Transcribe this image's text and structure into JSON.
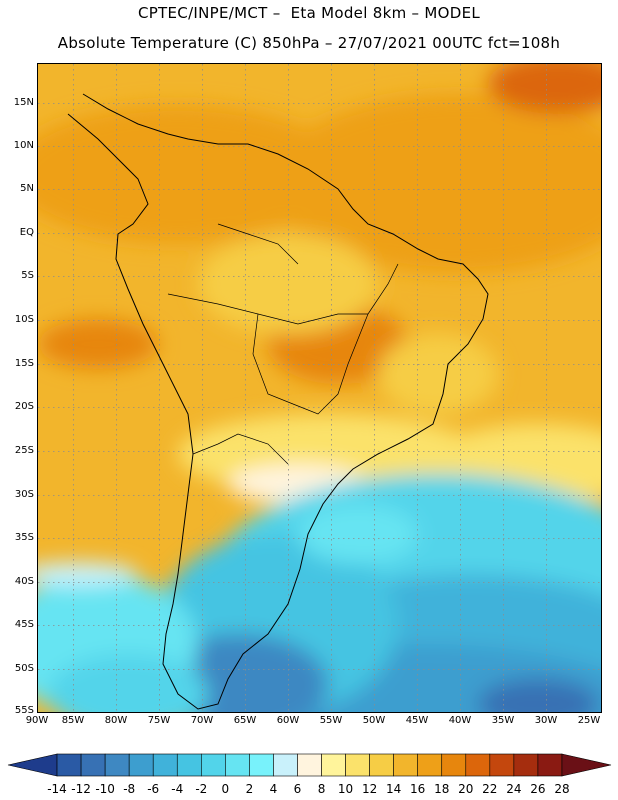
{
  "title_line1": "CPTEC/INPE/MCT –  Eta Model 8km – MODEL",
  "title_line2": "Absolute Temperature (C) 850hPa – 27/07/2021 00UTC fct=108h",
  "lat_labels": [
    "15N",
    "10N",
    "5N",
    "EQ",
    "5S",
    "10S",
    "15S",
    "20S",
    "25S",
    "30S",
    "35S",
    "40S",
    "45S",
    "50S",
    "55S"
  ],
  "lon_labels": [
    "90W",
    "85W",
    "80W",
    "75W",
    "70W",
    "65W",
    "60W",
    "55W",
    "50W",
    "45W",
    "40W",
    "35W",
    "30W",
    "25W"
  ],
  "colorbar": {
    "labels": [
      "-14",
      "-12",
      "-10",
      "-8",
      "-6",
      "-4",
      "-2",
      "0",
      "2",
      "4",
      "6",
      "8",
      "10",
      "12",
      "14",
      "16",
      "18",
      "20",
      "22",
      "24",
      "26",
      "28"
    ],
    "colors": [
      "#1e3c8c",
      "#2a5aa5",
      "#3771b4",
      "#3e88c2",
      "#3d9ecf",
      "#40b2da",
      "#45c4e2",
      "#52d4ea",
      "#66e4f2",
      "#78f2fb",
      "#c9f1fb",
      "#fff4de",
      "#fff49b",
      "#fbe26b",
      "#f6cd45",
      "#f2b52c",
      "#eea018",
      "#e7860d",
      "#dc660b",
      "#c4470d",
      "#a52d0e",
      "#8a1a12",
      "#6a1016"
    ]
  }
}
